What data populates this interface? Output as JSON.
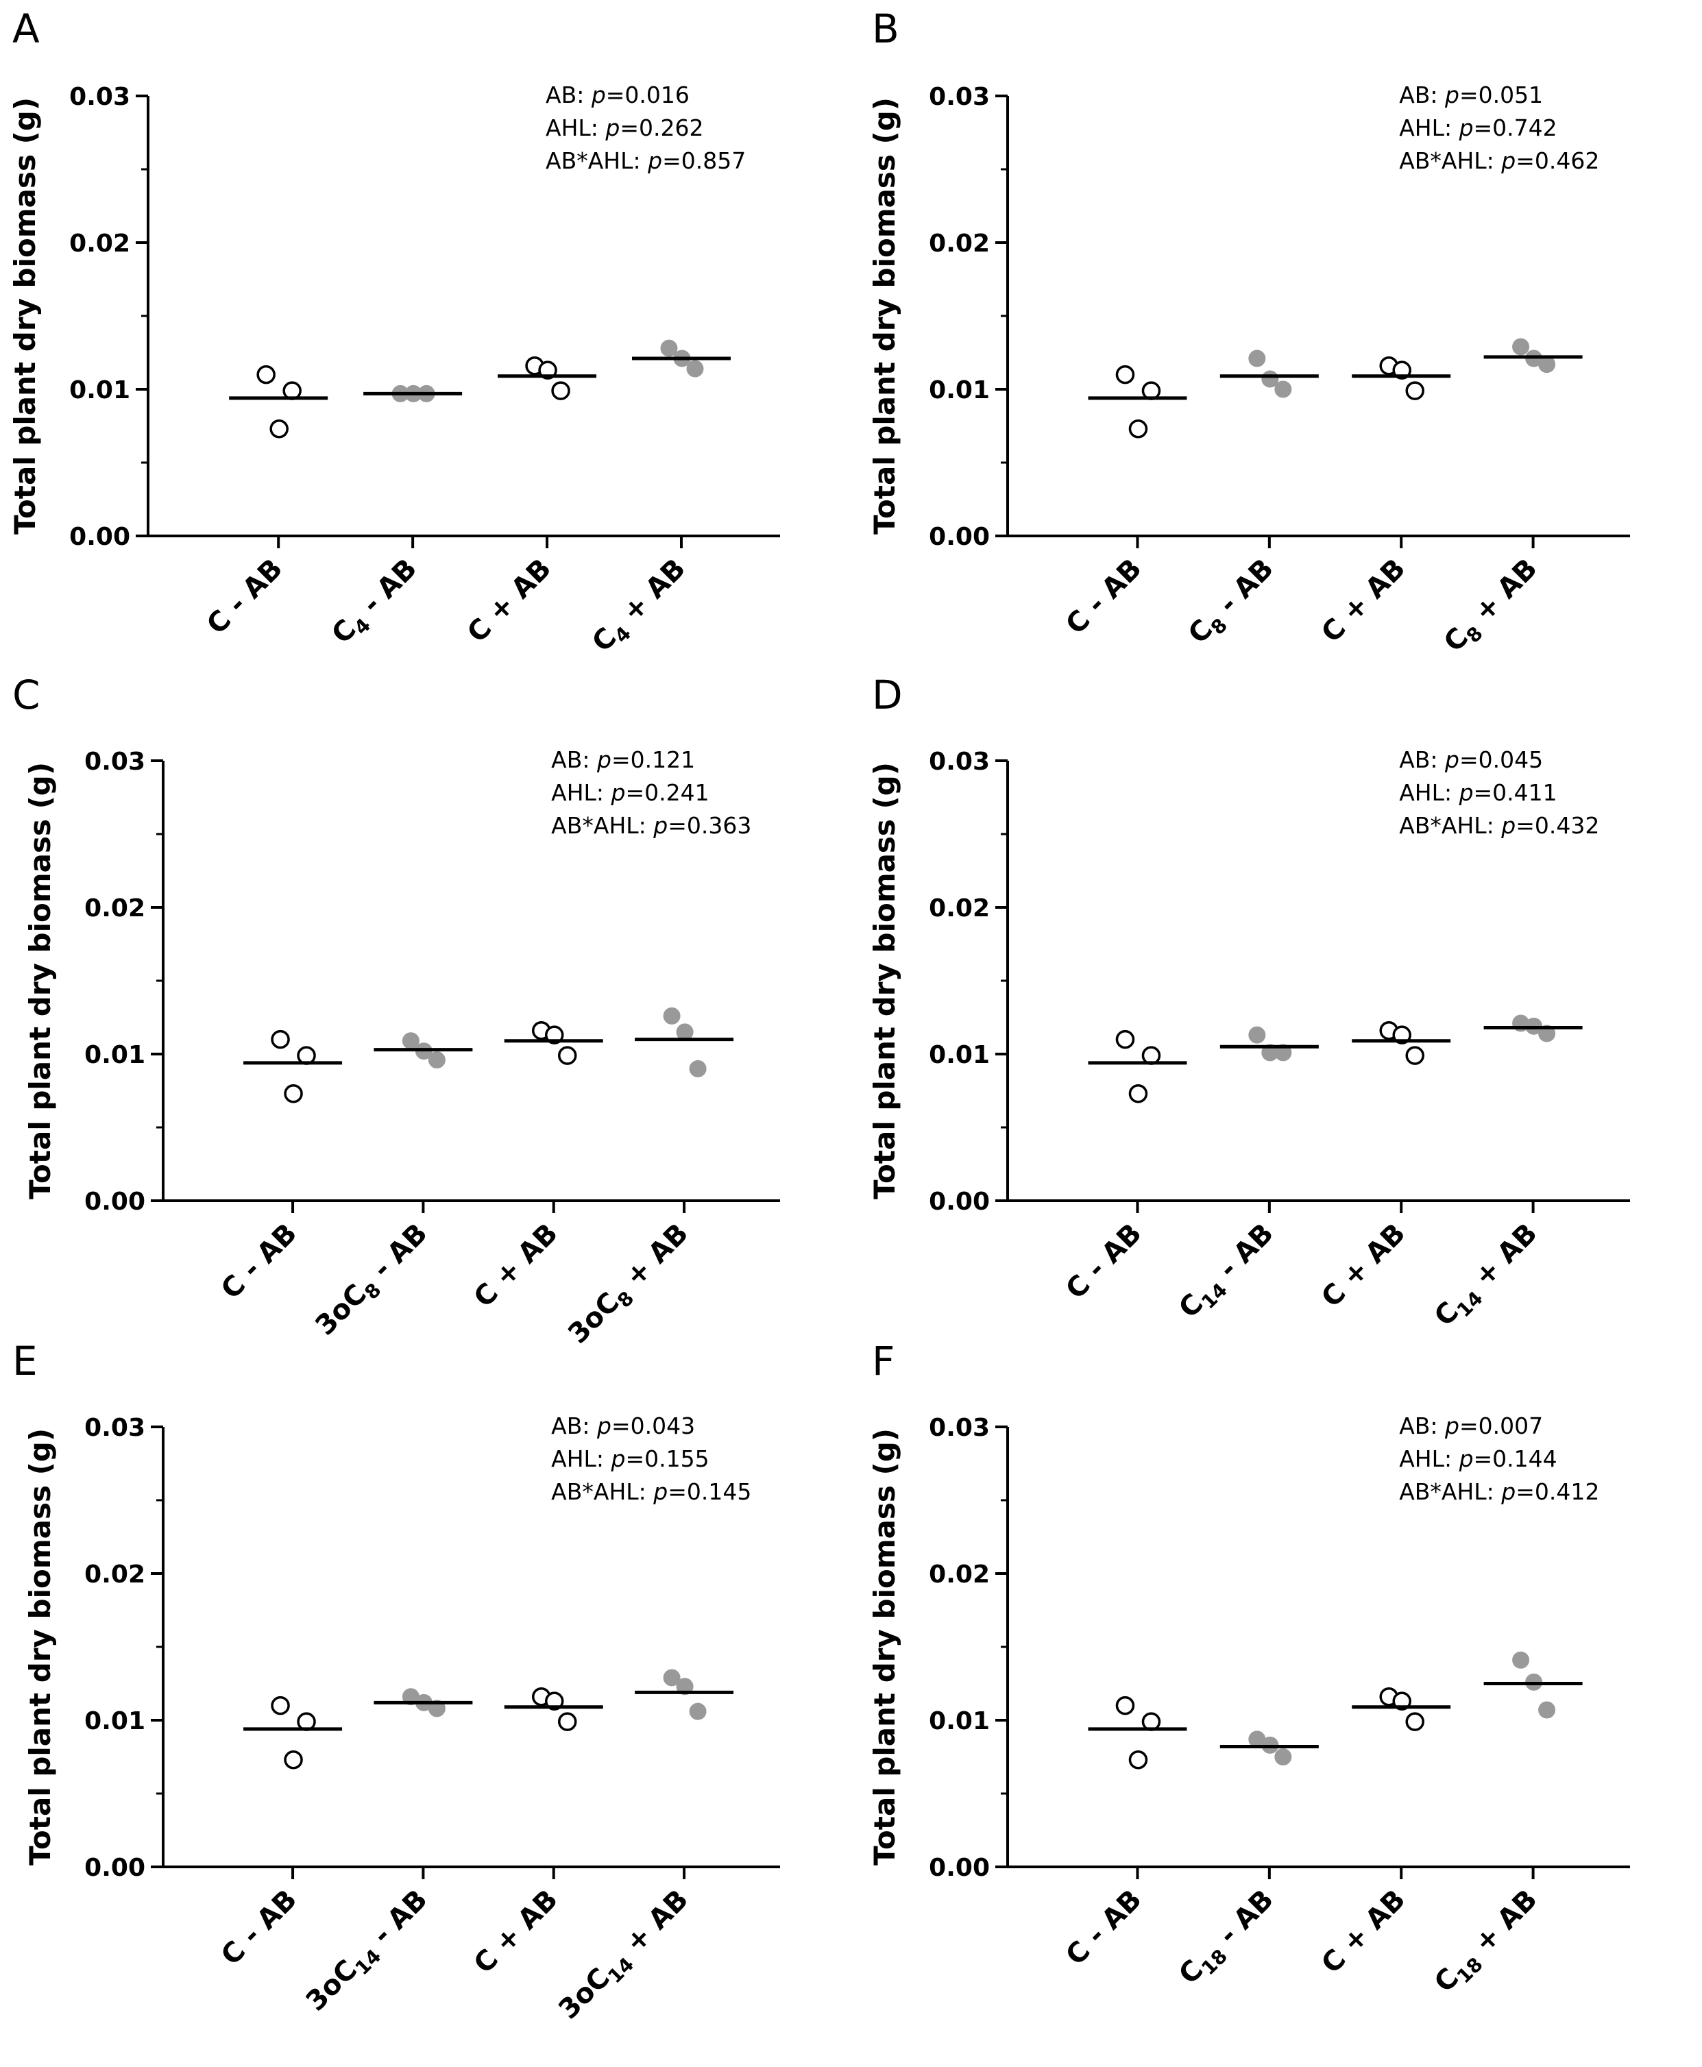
{
  "chart_data": [
    {
      "panel": "A",
      "type": "scatter",
      "ylabel": "Total plant dry biomass (g)",
      "ylim": [
        0,
        0.03
      ],
      "yticks": [
        "0.00",
        "0.01",
        "0.02",
        "0.03"
      ],
      "categories": [
        {
          "label": "C - AB",
          "parts": [
            "C - AB"
          ],
          "fill": "open",
          "points": [
            0.011,
            0.0099,
            0.0073
          ],
          "mean": 0.0094
        },
        {
          "label": "C4 - AB",
          "parts": [
            "C",
            "4",
            " - AB"
          ],
          "fill": "gray",
          "points": [
            0.0097,
            0.0097,
            0.0097
          ],
          "mean": 0.0097
        },
        {
          "label": "C + AB",
          "parts": [
            "C + AB"
          ],
          "fill": "open",
          "points": [
            0.0116,
            0.0099,
            0.0113
          ],
          "mean": 0.0109
        },
        {
          "label": "C4 + AB",
          "parts": [
            "C",
            "4",
            " + AB"
          ],
          "fill": "gray",
          "points": [
            0.0128,
            0.0114,
            0.0121
          ],
          "mean": 0.0121
        }
      ],
      "stats": [
        {
          "label": "AB: ",
          "p": "p",
          "value": "=0.016"
        },
        {
          "label": "AHL: ",
          "p": "p",
          "value": "=0.262"
        },
        {
          "label": "AB*AHL: ",
          "p": "p",
          "value": "=0.857"
        }
      ]
    },
    {
      "panel": "B",
      "type": "scatter",
      "ylabel": "Total plant dry biomass (g)",
      "ylim": [
        0,
        0.03
      ],
      "yticks": [
        "0.00",
        "0.01",
        "0.02",
        "0.03"
      ],
      "categories": [
        {
          "label": "C - AB",
          "parts": [
            "C - AB"
          ],
          "fill": "open",
          "points": [
            0.011,
            0.0099,
            0.0073
          ],
          "mean": 0.0094
        },
        {
          "label": "C8 - AB",
          "parts": [
            "C",
            "8",
            " - AB"
          ],
          "fill": "gray",
          "points": [
            0.0121,
            0.01,
            0.0107
          ],
          "mean": 0.0109
        },
        {
          "label": "C + AB",
          "parts": [
            "C + AB"
          ],
          "fill": "open",
          "points": [
            0.0116,
            0.0099,
            0.0113
          ],
          "mean": 0.0109
        },
        {
          "label": "C8 + AB",
          "parts": [
            "C",
            "8",
            " + AB"
          ],
          "fill": "gray",
          "points": [
            0.0129,
            0.0117,
            0.0121
          ],
          "mean": 0.0122
        }
      ],
      "stats": [
        {
          "label": "AB: ",
          "p": "p",
          "value": "=0.051"
        },
        {
          "label": "AHL: ",
          "p": "p",
          "value": "=0.742"
        },
        {
          "label": "AB*AHL: ",
          "p": "p",
          "value": "=0.462"
        }
      ]
    },
    {
      "panel": "C",
      "type": "scatter",
      "ylabel": "Total plant dry biomass (g)",
      "ylim": [
        0,
        0.03
      ],
      "yticks": [
        "0.00",
        "0.01",
        "0.02",
        "0.03"
      ],
      "categories": [
        {
          "label": "C - AB",
          "parts": [
            "C - AB"
          ],
          "fill": "open",
          "points": [
            0.011,
            0.0099,
            0.0073
          ],
          "mean": 0.0094
        },
        {
          "label": "3oC8 - AB",
          "parts": [
            "3oC",
            "8",
            " - AB"
          ],
          "fill": "gray",
          "points": [
            0.0109,
            0.0096,
            0.0102
          ],
          "mean": 0.0103
        },
        {
          "label": "C + AB",
          "parts": [
            "C + AB"
          ],
          "fill": "open",
          "points": [
            0.0116,
            0.0099,
            0.0113
          ],
          "mean": 0.0109
        },
        {
          "label": "3oC8 + AB",
          "parts": [
            "3oC",
            "8",
            " + AB"
          ],
          "fill": "gray",
          "points": [
            0.0126,
            0.009,
            0.0115
          ],
          "mean": 0.011
        }
      ],
      "stats": [
        {
          "label": "AB: ",
          "p": "p",
          "value": "=0.121"
        },
        {
          "label": "AHL: ",
          "p": "p",
          "value": "=0.241"
        },
        {
          "label": "AB*AHL: ",
          "p": "p",
          "value": "=0.363"
        }
      ]
    },
    {
      "panel": "D",
      "type": "scatter",
      "ylabel": "Total plant dry biomass (g)",
      "ylim": [
        0,
        0.03
      ],
      "yticks": [
        "0.00",
        "0.01",
        "0.02",
        "0.03"
      ],
      "categories": [
        {
          "label": "C - AB",
          "parts": [
            "C - AB"
          ],
          "fill": "open",
          "points": [
            0.011,
            0.0099,
            0.0073
          ],
          "mean": 0.0094
        },
        {
          "label": "C14 - AB",
          "parts": [
            "C",
            "14",
            " - AB"
          ],
          "fill": "gray",
          "points": [
            0.0113,
            0.0101,
            0.0101
          ],
          "mean": 0.0105
        },
        {
          "label": "C + AB",
          "parts": [
            "C + AB"
          ],
          "fill": "open",
          "points": [
            0.0116,
            0.0099,
            0.0113
          ],
          "mean": 0.0109
        },
        {
          "label": "C14 + AB",
          "parts": [
            "C",
            "14",
            " + AB"
          ],
          "fill": "gray",
          "points": [
            0.0121,
            0.0114,
            0.0119
          ],
          "mean": 0.0118
        }
      ],
      "stats": [
        {
          "label": "AB: ",
          "p": "p",
          "value": "=0.045"
        },
        {
          "label": "AHL: ",
          "p": "p",
          "value": "=0.411"
        },
        {
          "label": "AB*AHL: ",
          "p": "p",
          "value": "=0.432"
        }
      ]
    },
    {
      "panel": "E",
      "type": "scatter",
      "ylabel": "Total plant dry biomass (g)",
      "ylim": [
        0,
        0.03
      ],
      "yticks": [
        "0.00",
        "0.01",
        "0.02",
        "0.03"
      ],
      "categories": [
        {
          "label": "C - AB",
          "parts": [
            "C - AB"
          ],
          "fill": "open",
          "points": [
            0.011,
            0.0099,
            0.0073
          ],
          "mean": 0.0094
        },
        {
          "label": "3oC14 - AB",
          "parts": [
            "3oC",
            "14",
            " - AB"
          ],
          "fill": "gray",
          "points": [
            0.0116,
            0.0108,
            0.0112
          ],
          "mean": 0.0112
        },
        {
          "label": "C + AB",
          "parts": [
            "C + AB"
          ],
          "fill": "open",
          "points": [
            0.0116,
            0.0099,
            0.0113
          ],
          "mean": 0.0109
        },
        {
          "label": "3oC14 + AB",
          "parts": [
            "3oC",
            "14",
            " + AB"
          ],
          "fill": "gray",
          "points": [
            0.0129,
            0.0106,
            0.0123
          ],
          "mean": 0.0119
        }
      ],
      "stats": [
        {
          "label": "AB: ",
          "p": "p",
          "value": "=0.043"
        },
        {
          "label": "AHL: ",
          "p": "p",
          "value": "=0.155"
        },
        {
          "label": "AB*AHL: ",
          "p": "p",
          "value": "=0.145"
        }
      ]
    },
    {
      "panel": "F",
      "type": "scatter",
      "ylabel": "Total plant dry biomass (g)",
      "ylim": [
        0,
        0.03
      ],
      "yticks": [
        "0.00",
        "0.01",
        "0.02",
        "0.03"
      ],
      "categories": [
        {
          "label": "C - AB",
          "parts": [
            "C - AB"
          ],
          "fill": "open",
          "points": [
            0.011,
            0.0099,
            0.0073
          ],
          "mean": 0.0094
        },
        {
          "label": "C18 - AB",
          "parts": [
            "C",
            "18",
            " - AB"
          ],
          "fill": "gray",
          "points": [
            0.0087,
            0.0075,
            0.0083
          ],
          "mean": 0.0082
        },
        {
          "label": "C + AB",
          "parts": [
            "C + AB"
          ],
          "fill": "open",
          "points": [
            0.0116,
            0.0099,
            0.0113
          ],
          "mean": 0.0109
        },
        {
          "label": "C18 + AB",
          "parts": [
            "C",
            "18",
            " + AB"
          ],
          "fill": "gray",
          "points": [
            0.0141,
            0.0107,
            0.0126
          ],
          "mean": 0.0125
        }
      ],
      "stats": [
        {
          "label": "AB: ",
          "p": "p",
          "value": "=0.007"
        },
        {
          "label": "AHL: ",
          "p": "p",
          "value": "=0.144"
        },
        {
          "label": "AB*AHL: ",
          "p": "p",
          "value": "=0.412"
        }
      ]
    }
  ],
  "colors": {
    "axis": "#000000",
    "gray_marker": "#999999",
    "open_marker_fill": "#ffffff"
  }
}
